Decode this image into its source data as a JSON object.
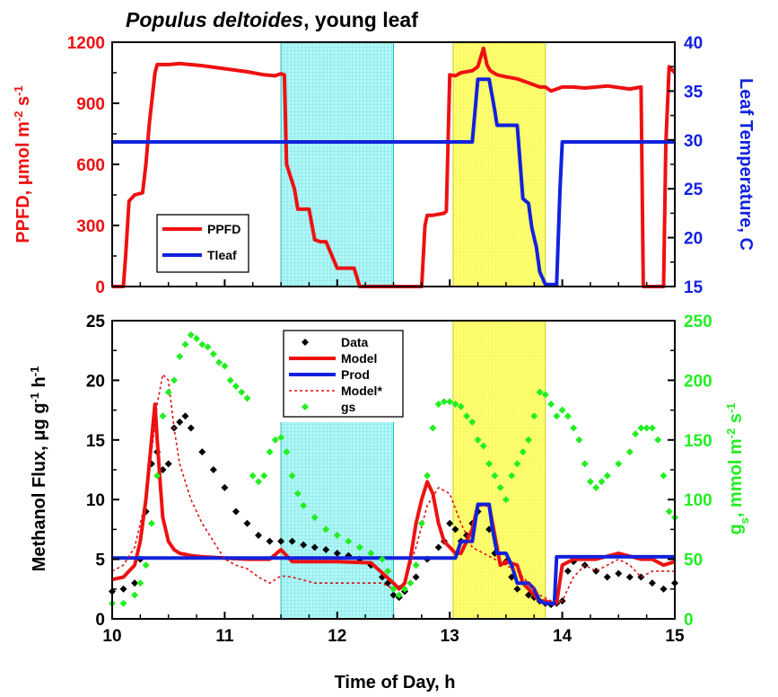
{
  "colors": {
    "ppfd": "#ee1111",
    "tleaf": "#1122dd",
    "data": "#000000",
    "model": "#ee1111",
    "prod": "#1122dd",
    "model_star": "#dd1111",
    "gs": "#22ee22",
    "cyan_band": "#55eeee",
    "yellow_band": "#ffff44"
  },
  "chart_data": [
    {
      "type": "line",
      "title": "Populus deltoides",
      "title_suffix": ", young leaf",
      "ylabel_left": "PPFD, μmol m-2 s-1",
      "ylabel_right": "Leaf Temperature, C",
      "ylim_left": [
        0,
        1200
      ],
      "ylim_right": [
        15,
        40
      ],
      "yticks_left": [
        "0",
        "300",
        "600",
        "900",
        "1200"
      ],
      "yticks_right": [
        "15",
        "20",
        "25",
        "30",
        "35",
        "40"
      ],
      "xlim": [
        10,
        15
      ],
      "shaded_regions": [
        {
          "color": "cyan",
          "x": [
            11.5,
            12.5
          ]
        },
        {
          "color": "yellow",
          "x": [
            13.03,
            13.85
          ]
        }
      ],
      "legend": {
        "placement": "lower-left",
        "entries": [
          "PPFD",
          "Tleaf"
        ]
      },
      "series": [
        {
          "name": "PPFD",
          "axis": "left",
          "x": [
            10.0,
            10.1,
            10.12,
            10.15,
            10.2,
            10.27,
            10.3,
            10.33,
            10.38,
            10.4,
            10.5,
            10.6,
            10.8,
            11.0,
            11.2,
            11.35,
            11.45,
            11.47,
            11.5,
            11.53,
            11.55,
            11.62,
            11.65,
            11.75,
            11.8,
            11.85,
            11.9,
            12.0,
            12.1,
            12.15,
            12.2,
            12.5,
            12.75,
            12.78,
            12.8,
            12.85,
            12.95,
            12.97,
            13.0,
            13.05,
            13.1,
            13.2,
            13.25,
            13.3,
            13.33,
            13.36,
            13.42,
            13.5,
            13.6,
            13.7,
            13.8,
            13.85,
            13.9,
            14.0,
            14.1,
            14.2,
            14.4,
            14.6,
            14.7,
            14.72,
            14.8,
            14.9,
            14.92,
            14.95,
            15.0
          ],
          "y": [
            0,
            0,
            150,
            420,
            450,
            460,
            600,
            800,
            1050,
            1090,
            1090,
            1095,
            1085,
            1070,
            1055,
            1040,
            1035,
            1040,
            1045,
            1040,
            600,
            480,
            380,
            380,
            230,
            220,
            220,
            90,
            90,
            90,
            0,
            0,
            0,
            300,
            350,
            350,
            360,
            370,
            1040,
            1035,
            1050,
            1060,
            1080,
            1170,
            1090,
            1060,
            1040,
            1030,
            1020,
            1000,
            980,
            980,
            960,
            980,
            980,
            975,
            985,
            970,
            980,
            0,
            0,
            0,
            700,
            1080,
            1050
          ]
        },
        {
          "name": "Tleaf",
          "axis": "right",
          "x": [
            10.0,
            11.0,
            12.0,
            13.0,
            13.2,
            13.25,
            13.35,
            13.4,
            13.42,
            13.6,
            13.65,
            13.7,
            13.73,
            13.77,
            13.8,
            13.85,
            13.9,
            13.95,
            13.98,
            14.0,
            14.5,
            15.0
          ],
          "y": [
            29.8,
            29.8,
            29.8,
            29.8,
            29.8,
            36.2,
            36.2,
            33.0,
            31.5,
            31.5,
            24.0,
            23.5,
            21.0,
            19.0,
            16.5,
            15.2,
            15.2,
            15.2,
            25.0,
            29.8,
            29.8,
            29.8
          ]
        }
      ]
    },
    {
      "type": "line",
      "xlabel": "Time of Day, h",
      "ylabel_left": "Methanol Flux, μg g-1 h-1",
      "ylabel_right": "gs, mmol m-2 s-1",
      "ylim_left": [
        0,
        25
      ],
      "ylim_right": [
        0,
        250
      ],
      "yticks_left": [
        "0",
        "5",
        "10",
        "15",
        "20",
        "25"
      ],
      "yticks_right": [
        "0",
        "50",
        "100",
        "150",
        "200",
        "250"
      ],
      "xlim": [
        10,
        15
      ],
      "xticks": [
        "10",
        "11",
        "12",
        "13",
        "14",
        "15"
      ],
      "shaded_regions": [
        {
          "color": "cyan",
          "x": [
            11.5,
            12.5
          ]
        },
        {
          "color": "yellow",
          "x": [
            13.03,
            13.85
          ]
        }
      ],
      "legend": {
        "placement": "top-center",
        "entries": [
          "Data",
          "Model",
          "Prod",
          "Model*",
          "gs"
        ]
      },
      "series": [
        {
          "name": "Data",
          "axis": "left",
          "style": "markers",
          "x": [
            10.0,
            10.1,
            10.2,
            10.25,
            10.3,
            10.35,
            10.4,
            10.45,
            10.5,
            10.55,
            10.6,
            10.65,
            10.7,
            10.8,
            10.9,
            11.0,
            11.1,
            11.2,
            11.3,
            11.4,
            11.5,
            11.6,
            11.7,
            11.8,
            11.9,
            12.0,
            12.1,
            12.2,
            12.3,
            12.4,
            12.45,
            12.5,
            12.55,
            12.6,
            12.7,
            12.8,
            12.9,
            12.95,
            13.0,
            13.05,
            13.1,
            13.15,
            13.2,
            13.25,
            13.35,
            13.4,
            13.5,
            13.55,
            13.6,
            13.7,
            13.75,
            13.8,
            13.85,
            13.9,
            13.95,
            14.0,
            14.05,
            14.1,
            14.2,
            14.3,
            14.4,
            14.5,
            14.6,
            14.7,
            14.8,
            14.9,
            15.0
          ],
          "y": [
            2.3,
            2.5,
            3.0,
            5.0,
            9.0,
            13.0,
            14.0,
            12.5,
            13.0,
            16.0,
            16.5,
            17.0,
            16.0,
            14.0,
            12.5,
            11.0,
            9.0,
            8.0,
            7.0,
            6.5,
            6.5,
            6.5,
            6.2,
            6.0,
            5.8,
            5.5,
            5.3,
            5.0,
            4.5,
            3.5,
            3.0,
            2.0,
            1.8,
            2.3,
            3.5,
            5.0,
            6.0,
            6.5,
            8.0,
            7.5,
            6.5,
            7.0,
            8.0,
            9.0,
            7.5,
            5.5,
            4.8,
            3.5,
            2.5,
            2.0,
            1.8,
            1.5,
            1.3,
            1.2,
            1.3,
            1.5,
            4.0,
            4.8,
            4.5,
            4.0,
            3.5,
            3.8,
            3.5,
            3.5,
            3.0,
            2.5,
            3.0
          ]
        },
        {
          "name": "Model",
          "axis": "left",
          "x": [
            10.0,
            10.1,
            10.2,
            10.25,
            10.3,
            10.35,
            10.38,
            10.4,
            10.43,
            10.45,
            10.5,
            10.55,
            10.6,
            10.7,
            10.8,
            11.0,
            11.2,
            11.4,
            11.5,
            11.6,
            12.0,
            12.3,
            12.5,
            12.55,
            12.6,
            12.65,
            12.7,
            12.75,
            12.8,
            12.85,
            12.9,
            12.95,
            13.0,
            13.05,
            13.1,
            13.2,
            13.25,
            13.3,
            13.35,
            13.4,
            13.45,
            13.5,
            13.6,
            13.65,
            13.7,
            13.75,
            13.8,
            13.85,
            13.9,
            13.95,
            14.0,
            14.1,
            14.3,
            14.5,
            14.7,
            14.8,
            14.9,
            15.0
          ],
          "y": [
            3.3,
            3.5,
            4.5,
            6.5,
            10.0,
            15.0,
            18.0,
            15.0,
            11.0,
            8.5,
            6.5,
            5.8,
            5.5,
            5.3,
            5.2,
            5.1,
            5.0,
            5.0,
            5.8,
            4.8,
            4.8,
            4.7,
            3.0,
            2.5,
            3.0,
            5.0,
            8.0,
            10.0,
            11.5,
            10.5,
            8.0,
            6.5,
            6.0,
            5.5,
            5.5,
            7.5,
            9.5,
            9.6,
            9.5,
            7.0,
            4.5,
            4.8,
            4.5,
            3.0,
            2.5,
            2.0,
            1.5,
            1.5,
            1.3,
            1.3,
            4.5,
            5.0,
            5.0,
            5.5,
            5.0,
            5.0,
            4.5,
            4.8
          ]
        },
        {
          "name": "Prod",
          "axis": "left",
          "x": [
            10.0,
            13.05,
            13.1,
            13.2,
            13.25,
            13.3,
            13.35,
            13.38,
            13.42,
            13.5,
            13.55,
            13.6,
            13.65,
            13.7,
            13.75,
            13.8,
            13.85,
            13.9,
            13.93,
            13.95,
            14.0,
            15.0
          ],
          "y": [
            5.1,
            5.1,
            6.5,
            6.5,
            9.6,
            9.6,
            9.6,
            7.5,
            5.5,
            5.5,
            4.5,
            3.0,
            3.0,
            3.0,
            2.5,
            1.5,
            1.3,
            1.3,
            1.3,
            5.2,
            5.2,
            5.2
          ]
        },
        {
          "name": "Model*",
          "axis": "left",
          "style": "dotted",
          "x": [
            10.0,
            10.1,
            10.2,
            10.3,
            10.35,
            10.4,
            10.45,
            10.5,
            10.55,
            10.6,
            10.7,
            10.8,
            10.9,
            11.0,
            11.1,
            11.2,
            11.3,
            11.4,
            11.5,
            11.6,
            11.8,
            12.0,
            12.2,
            12.4,
            12.5,
            12.6,
            12.7,
            12.8,
            12.9,
            13.0,
            13.1,
            13.2,
            13.3,
            13.4,
            13.5,
            13.6,
            13.7,
            13.8,
            13.9,
            14.0,
            14.1,
            14.2,
            14.3,
            14.4,
            14.5,
            14.6,
            14.7,
            14.8,
            14.9,
            15.0
          ],
          "y": [
            4.0,
            4.5,
            6.0,
            10.0,
            14.0,
            18.0,
            20.5,
            20.0,
            16.0,
            13.0,
            10.0,
            8.0,
            6.5,
            5.0,
            4.5,
            4.2,
            3.5,
            3.0,
            3.6,
            3.5,
            3.0,
            3.0,
            3.0,
            3.0,
            2.5,
            3.0,
            6.0,
            9.5,
            11.0,
            10.5,
            8.0,
            6.0,
            5.5,
            5.0,
            4.5,
            4.0,
            3.0,
            2.0,
            1.5,
            1.5,
            3.5,
            4.5,
            4.0,
            4.5,
            5.0,
            4.5,
            3.5,
            4.0,
            4.0,
            4.0
          ]
        },
        {
          "name": "gs",
          "axis": "right",
          "style": "markers",
          "x": [
            10.0,
            10.1,
            10.2,
            10.25,
            10.3,
            10.35,
            10.4,
            10.45,
            10.5,
            10.55,
            10.6,
            10.65,
            10.7,
            10.75,
            10.8,
            10.85,
            10.9,
            10.95,
            11.0,
            11.05,
            11.1,
            11.15,
            11.2,
            11.25,
            11.3,
            11.35,
            11.4,
            11.45,
            11.5,
            11.55,
            11.6,
            11.65,
            11.7,
            11.8,
            11.9,
            12.0,
            12.1,
            12.2,
            12.3,
            12.4,
            12.45,
            12.5,
            12.55,
            12.6,
            12.65,
            12.7,
            12.75,
            12.8,
            12.85,
            12.9,
            12.95,
            13.0,
            13.05,
            13.1,
            13.15,
            13.2,
            13.25,
            13.3,
            13.35,
            13.4,
            13.45,
            13.5,
            13.55,
            13.6,
            13.65,
            13.7,
            13.75,
            13.8,
            13.85,
            13.9,
            13.95,
            14.0,
            14.05,
            14.1,
            14.15,
            14.2,
            14.25,
            14.3,
            14.35,
            14.4,
            14.5,
            14.6,
            14.65,
            14.7,
            14.75,
            14.8,
            14.85,
            14.9,
            14.95,
            15.0
          ],
          "y": [
            13,
            13,
            20,
            30,
            45,
            80,
            120,
            170,
            190,
            200,
            220,
            230,
            238,
            235,
            230,
            228,
            222,
            215,
            212,
            200,
            195,
            190,
            185,
            120,
            115,
            120,
            140,
            150,
            152,
            140,
            120,
            105,
            95,
            85,
            75,
            70,
            65,
            60,
            55,
            50,
            40,
            25,
            20,
            25,
            30,
            45,
            80,
            120,
            160,
            180,
            182,
            182,
            180,
            178,
            170,
            165,
            150,
            145,
            130,
            120,
            110,
            100,
            120,
            130,
            140,
            150,
            170,
            190,
            188,
            180,
            170,
            175,
            170,
            160,
            150,
            130,
            115,
            110,
            115,
            120,
            130,
            140,
            155,
            160,
            160,
            160,
            150,
            120,
            90,
            85
          ]
        }
      ]
    }
  ]
}
